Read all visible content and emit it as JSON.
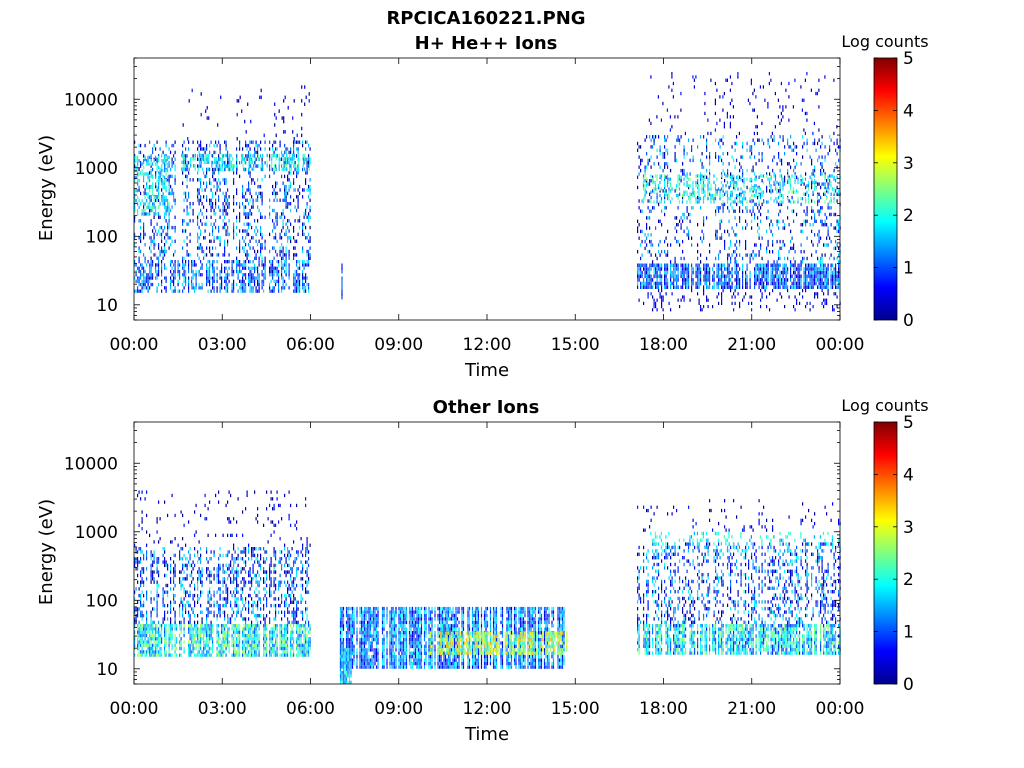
{
  "figure": {
    "filename": "RPCICA160221.PNG"
  },
  "colorbar": {
    "label": "Log counts",
    "ticks": [
      "0",
      "1",
      "2",
      "3",
      "4",
      "5"
    ],
    "range": [
      0,
      5
    ],
    "colormap": "jet"
  },
  "chart_data": [
    {
      "type": "heatmap",
      "title": "H+ He++ Ions",
      "xlabel": "Time",
      "ylabel": "Energy (eV)",
      "y_scale": "log",
      "ylim": [
        6,
        40000
      ],
      "x_ticks": [
        "00:00",
        "03:00",
        "06:00",
        "09:00",
        "12:00",
        "15:00",
        "18:00",
        "21:00",
        "00:00"
      ],
      "y_ticks": [
        "10",
        "100",
        "1000",
        "10000"
      ],
      "x_range_hours": [
        0,
        24
      ],
      "blocks": [
        {
          "t": [
            0.0,
            6.0
          ],
          "e": [
            15,
            45
          ],
          "level": 1.1,
          "density": 0.65,
          "spread": 0.8
        },
        {
          "t": [
            0.0,
            6.0
          ],
          "e": [
            45,
            2500
          ],
          "level": 0.9,
          "density": 0.32,
          "spread": 1.0
        },
        {
          "t": [
            0.0,
            1.2
          ],
          "e": [
            200,
            1500
          ],
          "level": 1.8,
          "density": 0.45,
          "spread": 0.6
        },
        {
          "t": [
            1.6,
            6.0
          ],
          "e": [
            900,
            1600
          ],
          "level": 1.9,
          "density": 0.55,
          "spread": 0.6
        },
        {
          "t": [
            1.5,
            6.0
          ],
          "e": [
            2500,
            16000
          ],
          "level": 0.4,
          "density": 0.04,
          "spread": 0.4
        },
        {
          "t": [
            7.0,
            7.1
          ],
          "e": [
            12,
            40
          ],
          "level": 0.9,
          "density": 0.9,
          "spread": 0.3
        },
        {
          "t": [
            17.1,
            24.0
          ],
          "e": [
            17,
            40
          ],
          "level": 1.0,
          "density": 0.85,
          "spread": 0.8
        },
        {
          "t": [
            17.1,
            24.0
          ],
          "e": [
            8,
            17
          ],
          "level": 0.4,
          "density": 0.18,
          "spread": 0.4
        },
        {
          "t": [
            17.1,
            24.0
          ],
          "e": [
            40,
            3000
          ],
          "level": 0.9,
          "density": 0.2,
          "spread": 1.0
        },
        {
          "t": [
            17.3,
            23.8
          ],
          "e": [
            300,
            800
          ],
          "level": 1.9,
          "density": 0.4,
          "spread": 0.7
        },
        {
          "t": [
            17.5,
            24.0
          ],
          "e": [
            3000,
            25000
          ],
          "level": 0.4,
          "density": 0.05,
          "spread": 0.4
        }
      ]
    },
    {
      "type": "heatmap",
      "title": "Other Ions",
      "xlabel": "Time",
      "ylabel": "Energy (eV)",
      "y_scale": "log",
      "ylim": [
        6,
        40000
      ],
      "x_ticks": [
        "00:00",
        "03:00",
        "06:00",
        "09:00",
        "12:00",
        "15:00",
        "18:00",
        "21:00",
        "00:00"
      ],
      "y_ticks": [
        "10",
        "100",
        "1000",
        "10000"
      ],
      "x_range_hours": [
        0,
        24
      ],
      "blocks": [
        {
          "t": [
            0.0,
            6.0
          ],
          "e": [
            15,
            45
          ],
          "level": 1.9,
          "density": 0.85,
          "spread": 0.9
        },
        {
          "t": [
            0.0,
            6.0
          ],
          "e": [
            45,
            600
          ],
          "level": 1.0,
          "density": 0.45,
          "spread": 1.0
        },
        {
          "t": [
            0.0,
            6.0
          ],
          "e": [
            600,
            4000
          ],
          "level": 0.4,
          "density": 0.08,
          "spread": 0.4
        },
        {
          "t": [
            7.0,
            14.7
          ],
          "e": [
            10,
            80
          ],
          "level": 1.2,
          "density": 0.9,
          "spread": 0.8
        },
        {
          "t": [
            7.0,
            7.4
          ],
          "e": [
            6,
            20
          ],
          "level": 1.6,
          "density": 0.9,
          "spread": 0.6
        },
        {
          "t": [
            10.0,
            14.7
          ],
          "e": [
            16,
            35
          ],
          "level": 2.8,
          "density": 0.75,
          "spread": 0.7
        },
        {
          "t": [
            17.1,
            24.0
          ],
          "e": [
            16,
            45
          ],
          "level": 1.7,
          "density": 0.85,
          "spread": 0.9
        },
        {
          "t": [
            17.1,
            24.0
          ],
          "e": [
            45,
            700
          ],
          "level": 1.0,
          "density": 0.35,
          "spread": 1.0
        },
        {
          "t": [
            17.5,
            24.0
          ],
          "e": [
            500,
            1000
          ],
          "level": 1.8,
          "density": 0.25,
          "spread": 0.5
        },
        {
          "t": [
            17.1,
            24.0
          ],
          "e": [
            1000,
            3000
          ],
          "level": 0.4,
          "density": 0.05,
          "spread": 0.4
        }
      ]
    }
  ]
}
